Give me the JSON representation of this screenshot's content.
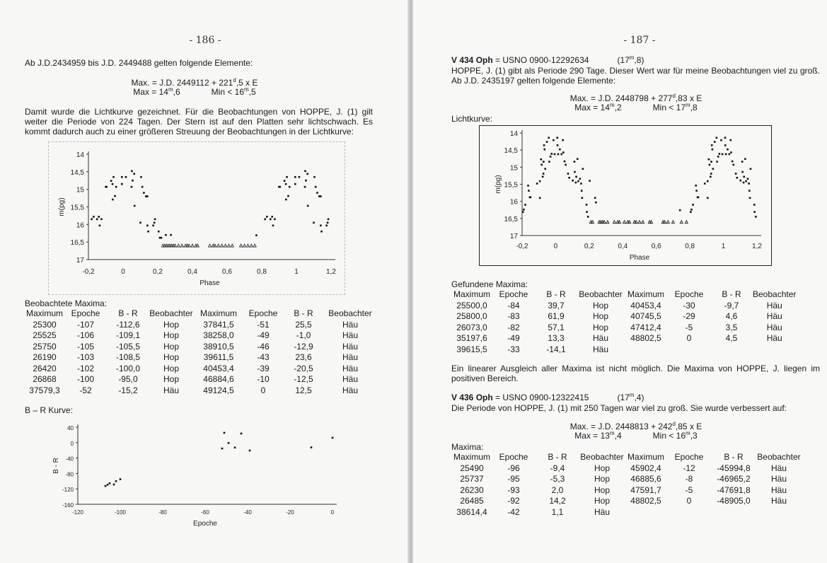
{
  "left_page": {
    "page_number": "- 186 -",
    "intro": "Ab J.D.2434959 bis J.D. 2449488 gelten folgende Elemente:",
    "formula1": {
      "pre": "Max. = J.D. 2449112   +   221",
      "sup": "d",
      "post": ",5   x   E"
    },
    "formula2": {
      "max_pre": "Max = 14",
      "max_sup": "m",
      "max_post": ",6",
      "min_pre": "Min < 16",
      "min_sup": "m",
      "min_post": ",5"
    },
    "paragraph": "Damit wurde die Lichtkurve gezeichnet. Für die Beobachtungen von HOPPE, J. (1) gilt weiter die Periode von 224 Tagen. Der Stern ist auf den Platten sehr lichtschwach. Es kommt dadurch auch zu einer größeren Streuung der Beobachtungen in der Lichtkurve:",
    "table_title": "Beobachtete Maxima:",
    "table": {
      "headers": [
        "Maximum",
        "Epoche",
        "B - R",
        "Beobachter",
        "Maximum",
        "Epoche",
        "B - R",
        "Beobachter"
      ],
      "rows": [
        [
          "25300",
          "-107",
          "-112,6",
          "Hop",
          "37841,5",
          "-51",
          "25,5",
          "Häu"
        ],
        [
          "25525",
          "-106",
          "-109,1",
          "Hop",
          "38258,0",
          "-49",
          "-1,0",
          "Häu"
        ],
        [
          "25750",
          "-105",
          "-105,5",
          "Hop",
          "38910,5",
          "-46",
          "-12,9",
          "Häu"
        ],
        [
          "26190",
          "-103",
          "-108,5",
          "Hop",
          "39611,5",
          "-43",
          "23,6",
          "Häu"
        ],
        [
          "26420",
          "-102",
          "-100,0",
          "Hop",
          "40453,4",
          "-39",
          "-20,5",
          "Häu"
        ],
        [
          "26868",
          "-100",
          "-95,0",
          "Hop",
          "46884,6",
          "-10",
          "-12,5",
          "Häu"
        ],
        [
          "37579,3",
          "-52",
          "-15,2",
          "Häu",
          "49124,5",
          "0",
          "12,5",
          "Häu"
        ]
      ]
    },
    "br_title": "B – R Kurve:"
  },
  "right_page": {
    "page_number": "- 187 -",
    "star1": {
      "name": "V 434 Oph",
      "ident": " = USNO 0900-12292634",
      "mag_pre": "(17",
      "mag_sup": "m",
      "mag_post": ",8)"
    },
    "paragraph1": "HOPPE, J. (1) gibt als Periode 290 Tage. Dieser Wert war für meine Beobachtungen viel zu groß. Ab J.D. 2435197 gelten folgende Elemente:",
    "formula1": {
      "pre": "Max. = J.D. 2448798   +   277",
      "sup": "d",
      "post": ",83   x   E"
    },
    "formula2": {
      "max_pre": "Max = 14",
      "max_sup": "m",
      "max_post": ",2",
      "min_pre": "Min < 17",
      "min_sup": "m",
      "min_post": ",8"
    },
    "lichtkurve_label": "Lichtkurve:",
    "table1_title": "Gefundene Maxima:",
    "table1": {
      "headers": [
        "Maximum",
        "Epoche",
        "B - R",
        "Beobachter",
        "Maximum",
        "Epoche",
        "B - R",
        "Beobachter"
      ],
      "rows": [
        [
          "25500,0",
          "-84",
          "39,7",
          "Hop",
          "40453,4",
          "-30",
          "-9,7",
          "Häu"
        ],
        [
          "25800,0",
          "-83",
          "61,9",
          "Hop",
          "40745,5",
          "-29",
          "4,6",
          "Häu"
        ],
        [
          "26073,0",
          "-82",
          "57,1",
          "Hop",
          "47412,4",
          "-5",
          "3,5",
          "Häu"
        ],
        [
          "35197,6",
          "-49",
          "13,3",
          "Häu",
          "48802,5",
          "0",
          "4,5",
          "Häu"
        ],
        [
          "39615,5",
          "-33",
          "-14,1",
          "Häu",
          "",
          "",
          "",
          ""
        ]
      ]
    },
    "paragraph2": "Ein linearer Ausgleich aller Maxima ist nicht möglich. Die Maxima von HOPPE, J. liegen im positiven Bereich.",
    "star2": {
      "name": "V 436 Oph",
      "ident": " = USNO 0900-12322415",
      "mag_pre": "(17",
      "mag_sup": "m",
      "mag_post": ",4)"
    },
    "paragraph3": "Die Periode von HOPPE, J. (1) mit 250 Tagen war viel zu groß. Sie wurde verbessert auf:",
    "formula3": {
      "pre": "Max. = J.D. 2448813   +   242",
      "sup": "d",
      "post": ",85   x   E"
    },
    "formula4": {
      "max_pre": "Max = 13",
      "max_sup": "m",
      "max_post": ",4",
      "min_pre": "Min < 16",
      "min_sup": "m",
      "min_post": ",3"
    },
    "table2_title": "Maxima:",
    "table2": {
      "headers": [
        "Maximum",
        "Epoche",
        "B - R",
        "Beobachter",
        "Maximum",
        "Epoche",
        "B - R",
        "Beobachter"
      ],
      "rows": [
        [
          "25490",
          "-96",
          "-9,4",
          "Hop",
          "45902,4",
          "-12",
          "-45994,8",
          "Häu"
        ],
        [
          "25737",
          "-95",
          "-5,3",
          "Hop",
          "46885,6",
          "-8",
          "-46965,2",
          "Häu"
        ],
        [
          "26230",
          "-93",
          "2,0",
          "Hop",
          "47591,7",
          "-5",
          "-47691,8",
          "Häu"
        ],
        [
          "26485",
          "-92",
          "14,2",
          "Hop",
          "48802,5",
          "0",
          "-48905,0",
          "Häu"
        ],
        [
          "38614,4",
          "-42",
          "1,1",
          "Häu",
          "",
          "",
          "",
          ""
        ]
      ]
    }
  },
  "chart_data": [
    {
      "id": "lc_left",
      "type": "scatter",
      "xlabel": "Phase",
      "ylabel": "m(pg)",
      "xlim": [
        -0.2,
        1.2
      ],
      "ylim": [
        17,
        14
      ],
      "y_inverted": true,
      "xticks": [
        "-0,2",
        "0",
        "0,2",
        "0,4",
        "0,6",
        "0,8",
        "1",
        "1,2"
      ],
      "yticks": [
        "14",
        "14,5",
        "15",
        "15,5",
        "16",
        "16,5",
        "17"
      ],
      "phase_repeat": 1,
      "points": [
        [
          -0.181,
          15.85
        ],
        [
          -0.17,
          15.78
        ],
        [
          -0.15,
          15.85
        ],
        [
          -0.14,
          15.78
        ],
        [
          -0.135,
          16.03
        ],
        [
          -0.125,
          15.85
        ],
        [
          -0.1,
          14.93
        ],
        [
          -0.095,
          14.93
        ],
        [
          -0.069,
          14.76
        ],
        [
          -0.061,
          14.85
        ],
        [
          -0.055,
          14.65
        ],
        [
          -0.06,
          15.29
        ],
        [
          -0.047,
          15.19
        ],
        [
          -0.04,
          14.93
        ],
        [
          -0.007,
          14.65
        ],
        [
          -0.007,
          14.85
        ],
        [
          0.016,
          14.65
        ],
        [
          0.051,
          14.48
        ],
        [
          0.064,
          14.56
        ],
        [
          0.055,
          14.75
        ],
        [
          0.049,
          14.93
        ],
        [
          0.066,
          15.47
        ],
        [
          0.104,
          14.65
        ],
        [
          0.111,
          14.93
        ],
        [
          0.12,
          15.1
        ],
        [
          0.132,
          15.2
        ],
        [
          0.14,
          15.2
        ],
        [
          0.1,
          15.95
        ],
        [
          0.14,
          16.03
        ],
        [
          0.145,
          16.2
        ],
        [
          0.174,
          16.03
        ],
        [
          0.18,
          15.95
        ],
        [
          0.184,
          15.85
        ],
        [
          0.205,
          16.2
        ],
        [
          0.212,
          16.38
        ],
        [
          0.22,
          16.38
        ],
        [
          0.247,
          16.3
        ],
        [
          0.276,
          16.3
        ],
        [
          0.769,
          16.31
        ]
      ],
      "upper_limits": {
        "mag": 16.6,
        "phases": [
          0.23,
          0.24,
          0.25,
          0.26,
          0.27,
          0.28,
          0.29,
          0.3,
          0.32,
          0.34,
          0.36,
          0.37,
          0.38,
          0.4,
          0.42,
          0.43,
          0.5,
          0.52,
          0.53,
          0.55,
          0.57,
          0.59,
          0.61,
          0.63,
          0.68,
          0.7,
          0.72,
          0.74,
          0.76
        ]
      }
    },
    {
      "id": "br_left",
      "type": "scatter",
      "xlabel": "Epoche",
      "ylabel": "B - R",
      "xlim": [
        -120,
        0
      ],
      "ylim": [
        -160,
        40
      ],
      "xticks": [
        "-120",
        "-100",
        "-80",
        "-60",
        "-40",
        "-20",
        "0"
      ],
      "yticks": [
        "40",
        "0",
        "-40",
        "-80",
        "-120",
        "-160"
      ],
      "x": [
        -107,
        -106,
        -105,
        -103,
        -102,
        -100,
        -52,
        -51,
        -49,
        -46,
        -43,
        -39,
        -10,
        0
      ],
      "y": [
        -112.6,
        -109.1,
        -105.5,
        -108.5,
        -100,
        -95,
        -15.2,
        25.5,
        -1,
        -12.9,
        23.6,
        -20.5,
        -12.5,
        12.5
      ]
    },
    {
      "id": "lc_right",
      "type": "scatter",
      "xlabel": "Phase",
      "ylabel": "m(pg)",
      "xlim": [
        -0.2,
        1.2
      ],
      "ylim": [
        17,
        14
      ],
      "y_inverted": true,
      "xticks": [
        "-0,2",
        "0",
        "0,2",
        "0,4",
        "0,6",
        "0,8",
        "1",
        "1,2"
      ],
      "yticks": [
        "14",
        "14,5",
        "15",
        "15,5",
        "16",
        "16,5",
        "17"
      ],
      "phase_repeat": 1,
      "points": [
        [
          -0.195,
          16.31
        ],
        [
          -0.19,
          16.24
        ],
        [
          -0.181,
          16.1
        ],
        [
          -0.164,
          15.54
        ],
        [
          -0.16,
          15.69
        ],
        [
          -0.154,
          15.88
        ],
        [
          -0.15,
          15.88
        ],
        [
          -0.111,
          15.48
        ],
        [
          -0.094,
          15.41
        ],
        [
          -0.094,
          15.9
        ],
        [
          -0.087,
          14.77
        ],
        [
          -0.083,
          14.93
        ],
        [
          -0.077,
          15.28
        ],
        [
          -0.073,
          15.19
        ],
        [
          -0.072,
          14.84
        ],
        [
          -0.069,
          14.36
        ],
        [
          -0.066,
          14.48
        ],
        [
          -0.062,
          15.05
        ],
        [
          -0.052,
          14.26
        ],
        [
          -0.041,
          14.14
        ],
        [
          -0.038,
          14.84
        ],
        [
          -0.031,
          14.69
        ],
        [
          -0.024,
          14.61
        ],
        [
          -0.013,
          14.21
        ],
        [
          -0.006,
          14.62
        ],
        [
          0.01,
          14.14
        ],
        [
          0.011,
          14.36
        ],
        [
          0.015,
          14.62
        ],
        [
          0.025,
          14.48
        ],
        [
          0.035,
          14.62
        ],
        [
          0.043,
          14.21
        ],
        [
          0.046,
          14.57
        ],
        [
          0.053,
          14.83
        ],
        [
          0.06,
          14.93
        ],
        [
          0.074,
          15.19
        ],
        [
          0.081,
          15.31
        ],
        [
          0.102,
          15.39
        ],
        [
          0.112,
          14.84
        ],
        [
          0.114,
          15.14
        ],
        [
          0.12,
          15.45
        ],
        [
          0.123,
          15.28
        ],
        [
          0.13,
          14.76
        ],
        [
          0.135,
          15.41
        ],
        [
          0.145,
          15.34
        ],
        [
          0.152,
          15.48
        ],
        [
          0.155,
          15.69
        ],
        [
          0.158,
          15.9
        ],
        [
          0.162,
          15.05
        ],
        [
          0.184,
          16.1
        ],
        [
          0.186,
          16.31
        ],
        [
          0.193,
          16.45
        ],
        [
          0.203,
          15.4
        ],
        [
          0.235,
          15.9
        ],
        [
          0.24,
          16.03
        ],
        [
          0.741,
          16.26
        ]
      ],
      "upper_limits": {
        "mag": 16.6,
        "phases": [
          0.21,
          0.22,
          0.26,
          0.27,
          0.28,
          0.29,
          0.31,
          0.35,
          0.37,
          0.38,
          0.41,
          0.43,
          0.44,
          0.47,
          0.48,
          0.5,
          0.52,
          0.56,
          0.57,
          0.64,
          0.65,
          0.67,
          0.7,
          0.75,
          0.78
        ]
      }
    }
  ]
}
